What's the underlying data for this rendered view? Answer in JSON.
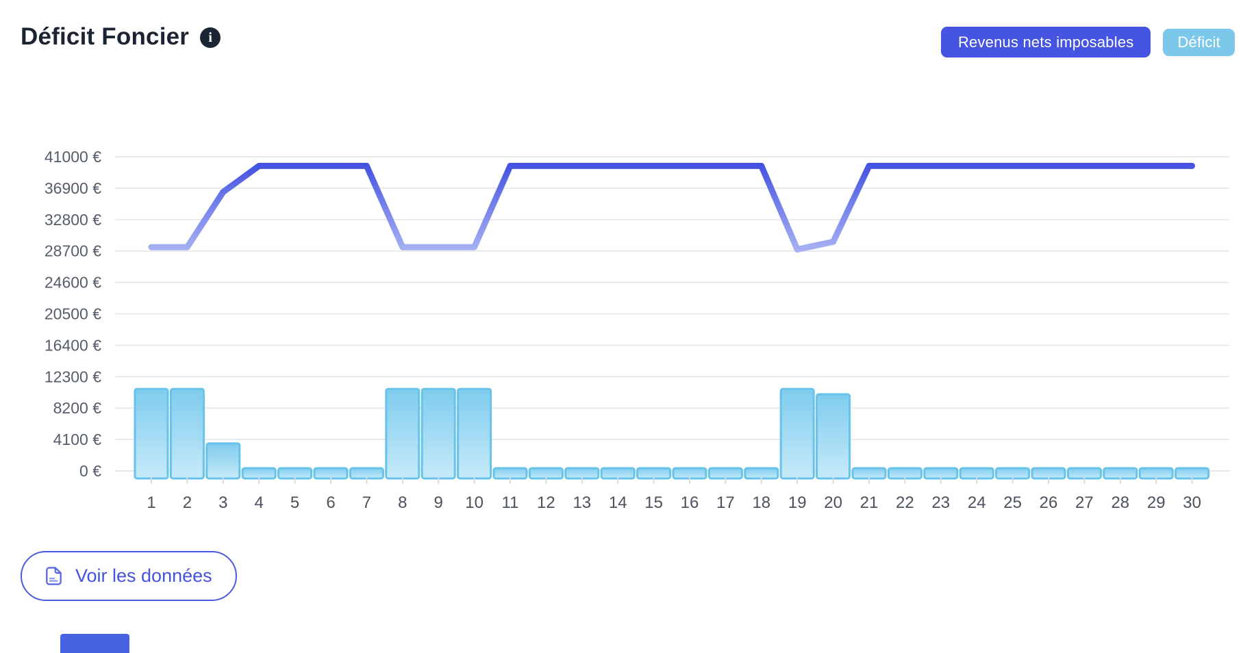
{
  "header": {
    "title": "Déficit Foncier",
    "info_icon_glyph": "i"
  },
  "legend": {
    "revenus_label": "Revenus nets imposables",
    "deficit_label": "Déficit"
  },
  "footer": {
    "view_data_label": "Voir les données"
  },
  "colors": {
    "accent_indigo": "#4554e1",
    "accent_sky": "#7cc8ea",
    "line_dark": "#4150e0",
    "line_mid": "#7d8aec",
    "line_light": "#abb5f3",
    "bar_fill_top": "#7fccee",
    "bar_fill_mid": "#a5dcf4",
    "bar_fill_bottom": "#c7eaf9",
    "bar_stroke": "#67c3e9",
    "grid": "#e9e9eb",
    "tick": "#d9dbde",
    "y_label_color": "#555d68",
    "x_label_color": "#4b515c",
    "title_color": "#1a2433",
    "info_badge_bg": "#1c2534"
  },
  "chart_data": {
    "type": "mixed",
    "categories": [
      "1",
      "2",
      "3",
      "4",
      "5",
      "6",
      "7",
      "8",
      "9",
      "10",
      "11",
      "12",
      "13",
      "14",
      "15",
      "16",
      "17",
      "18",
      "19",
      "20",
      "21",
      "22",
      "23",
      "24",
      "25",
      "26",
      "27",
      "28",
      "29",
      "30"
    ],
    "series": [
      {
        "name": "Revenus nets imposables",
        "type": "line",
        "values": [
          29200,
          29200,
          36400,
          39800,
          39800,
          39800,
          39800,
          29200,
          29200,
          29200,
          39800,
          39800,
          39800,
          39800,
          39800,
          39800,
          39800,
          39800,
          28900,
          29900,
          39800,
          39800,
          39800,
          39800,
          39800,
          39800,
          39800,
          39800,
          39800,
          39800
        ]
      },
      {
        "name": "Déficit",
        "type": "bar",
        "values": [
          10700,
          10700,
          3600,
          0,
          0,
          0,
          0,
          10700,
          10700,
          10700,
          0,
          0,
          0,
          0,
          0,
          0,
          0,
          0,
          10700,
          10000,
          0,
          0,
          0,
          0,
          0,
          0,
          0,
          0,
          0,
          0
        ]
      }
    ],
    "y_ticks": [
      0,
      4100,
      8200,
      12300,
      16400,
      20500,
      24600,
      28700,
      32800,
      36900,
      41000
    ],
    "y_tick_labels": [
      "0 €",
      "4100 €",
      "8200 €",
      "12300 €",
      "16400 €",
      "20500 €",
      "24600 €",
      "28700 €",
      "32800 €",
      "36900 €",
      "41000 €"
    ],
    "ylim": [
      0,
      41000
    ],
    "xlabel": "",
    "ylabel": "",
    "grid": true,
    "legend_position": "top-right"
  }
}
